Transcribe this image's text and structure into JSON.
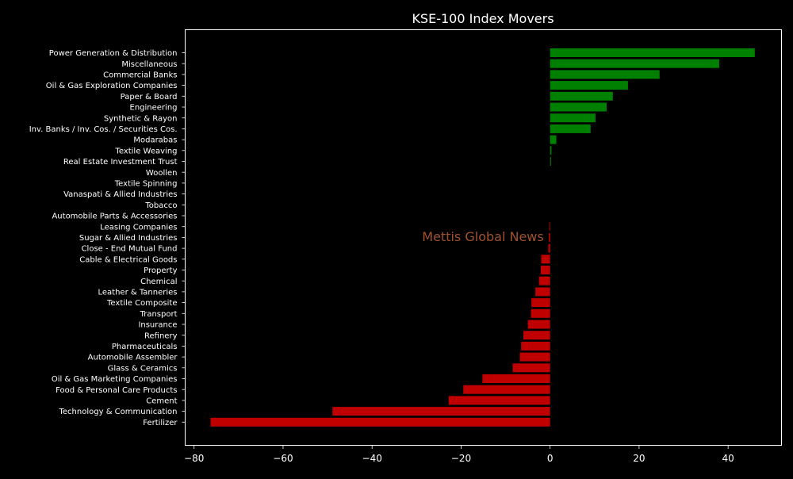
{
  "chart_data": {
    "type": "bar",
    "orientation": "horizontal",
    "title": "KSE-100 Index Movers",
    "xlabel": "",
    "ylabel": "",
    "xlim": [
      -82,
      52
    ],
    "xticks": [
      -80,
      -60,
      -40,
      -20,
      0,
      20,
      40
    ],
    "xtick_labels": [
      "−80",
      "−60",
      "−40",
      "−20",
      "0",
      "20",
      "40"
    ],
    "grid": false,
    "colors": {
      "positive": "#008000",
      "negative": "#c00000",
      "background": "#000000",
      "text": "#ffffff",
      "watermark": "#a0522d"
    },
    "categories": [
      "Power Generation & Distribution",
      "Miscellaneous",
      "Commercial Banks",
      "Oil & Gas Exploration Companies",
      "Paper & Board",
      "Engineering",
      "Synthetic & Rayon",
      "Inv. Banks / Inv. Cos. / Securities Cos.",
      "Modarabas",
      "Textile Weaving",
      "Real Estate Investment Trust",
      "Woollen",
      "Textile Spinning",
      "Vanaspati & Allied Industries",
      "Tobacco",
      "Automobile Parts & Accessories",
      "Leasing Companies",
      "Sugar & Allied Industries",
      "Close - End Mutual Fund",
      "Cable & Electrical Goods",
      "Property",
      "Chemical",
      "Leather & Tanneries",
      "Textile Composite",
      "Transport",
      "Insurance",
      "Refinery",
      "Pharmaceuticals",
      "Automobile Assembler",
      "Glass & Ceramics",
      "Oil & Gas Marketing Companies",
      "Food & Personal Care Products",
      "Cement",
      "Technology & Communication",
      "Fertilizer"
    ],
    "values": [
      46.0,
      38.0,
      24.6,
      17.5,
      14.1,
      12.7,
      10.2,
      9.1,
      1.4,
      0.3,
      0.2,
      0,
      0,
      0,
      0,
      0,
      -0.15,
      -0.3,
      -0.4,
      -2.0,
      -2.1,
      -2.5,
      -3.3,
      -4.2,
      -4.3,
      -5.0,
      -6.0,
      -6.5,
      -6.8,
      -8.4,
      -15.2,
      -19.5,
      -22.8,
      -48.9,
      -76.3
    ]
  },
  "watermark": "Mettis Global News"
}
